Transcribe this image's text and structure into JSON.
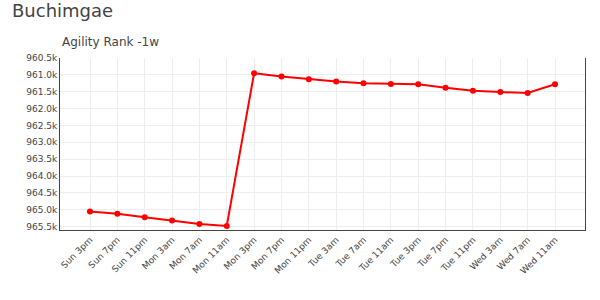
{
  "chart_data": {
    "type": "line",
    "title": "Buchimgae",
    "subtitle": "Agility Rank -1w",
    "categories": [
      "Sun 3pm",
      "Sun 7pm",
      "Sun 11pm",
      "Mon 3am",
      "Mon 7am",
      "Mon 11am",
      "Mon 3pm",
      "Mon 7pm",
      "Mon 11pm",
      "Tue 3am",
      "Tue 7am",
      "Tue 11am",
      "Tue 3pm",
      "Tue 7pm",
      "Tue 11pm",
      "Wed 3am",
      "Wed 7am",
      "Wed 11am"
    ],
    "values": [
      965050,
      965120,
      965220,
      965320,
      965420,
      965480,
      960950,
      961050,
      961130,
      961200,
      961250,
      961270,
      961280,
      961380,
      961470,
      961510,
      961540,
      961280
    ],
    "color": "#ff0000",
    "marker": "circle",
    "line_style": "solid",
    "ylim": [
      965600,
      960500
    ],
    "yticks": [
      {
        "value": 960500,
        "label": "960.5k"
      },
      {
        "value": 961000,
        "label": "961.0k"
      },
      {
        "value": 961500,
        "label": "961.5k"
      },
      {
        "value": 962000,
        "label": "962.0k"
      },
      {
        "value": 962500,
        "label": "962.5k"
      },
      {
        "value": 963000,
        "label": "963.0k"
      },
      {
        "value": 963500,
        "label": "963.5k"
      },
      {
        "value": 964000,
        "label": "964.0k"
      },
      {
        "value": 964500,
        "label": "964.5k"
      },
      {
        "value": 965000,
        "label": "965.0k"
      },
      {
        "value": 965500,
        "label": "965.5k"
      }
    ],
    "grid": true
  }
}
